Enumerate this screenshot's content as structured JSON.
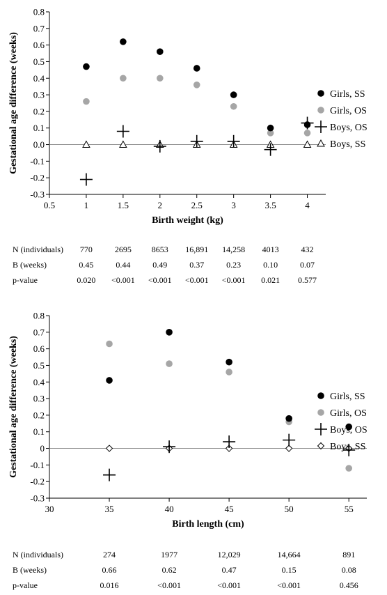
{
  "chart_data": [
    {
      "type": "scatter",
      "xlabel": "Birth weight (kg)",
      "ylabel": "Gestational age difference (weeks)",
      "xlim": [
        0.5,
        4.25
      ],
      "ylim": [
        -0.3,
        0.8
      ],
      "xticks": [
        "0.5",
        "1",
        "1.5",
        "2",
        "2.5",
        "3",
        "3.5",
        "4"
      ],
      "yticks": [
        "-0.3",
        "-0.2",
        "-0.1",
        "0.0",
        "0.1",
        "0.2",
        "0.3",
        "0.4",
        "0.5",
        "0.6",
        "0.7",
        "0.8"
      ],
      "legend_position": "right",
      "x": [
        1,
        1.5,
        2,
        2.5,
        3,
        3.5,
        4
      ],
      "series": [
        {
          "name": "Girls, SS",
          "marker": "filled-circle",
          "color": "#000000",
          "values": [
            0.47,
            0.62,
            0.56,
            0.46,
            0.3,
            0.1,
            0.12
          ]
        },
        {
          "name": "Girls, OS",
          "marker": "filled-circle",
          "color": "#a6a6a6",
          "values": [
            0.26,
            0.4,
            0.4,
            0.36,
            0.23,
            0.07,
            0.07
          ]
        },
        {
          "name": "Boys, OS",
          "marker": "plus",
          "color": "#000000",
          "values": [
            -0.21,
            0.08,
            -0.01,
            0.02,
            0.02,
            -0.03,
            0.13
          ]
        },
        {
          "name": "Boys, SS",
          "marker": "open-triangle",
          "color": "#000000",
          "values": [
            0.0,
            0.0,
            0.0,
            0.0,
            0.0,
            0.0,
            0.0
          ]
        }
      ],
      "table": {
        "rows": [
          {
            "label": "N (individuals)",
            "values": [
              "770",
              "2695",
              "8653",
              "16,891",
              "14,258",
              "4013",
              "432"
            ]
          },
          {
            "label": "B (weeks)",
            "values": [
              "0.45",
              "0.44",
              "0.49",
              "0.37",
              "0.23",
              "0.10",
              "0.07"
            ]
          },
          {
            "label": "p-value",
            "values": [
              "0.020",
              "<0.001",
              "<0.001",
              "<0.001",
              "<0.001",
              "0.021",
              "0.577"
            ]
          }
        ]
      }
    },
    {
      "type": "scatter",
      "xlabel": "Birth length (cm)",
      "ylabel": "Gestational age difference (weeks)",
      "xlim": [
        30,
        56.5
      ],
      "ylim": [
        -0.3,
        0.8
      ],
      "xticks": [
        "30",
        "35",
        "40",
        "45",
        "50",
        "55"
      ],
      "yticks": [
        "-0.3",
        "-0.2",
        "-0.1",
        "0",
        "0.1",
        "0.2",
        "0.3",
        "0.4",
        "0.5",
        "0.6",
        "0.7",
        "0.8"
      ],
      "legend_position": "right",
      "x": [
        35,
        40,
        45,
        50,
        55
      ],
      "series": [
        {
          "name": "Girls, SS",
          "marker": "filled-circle",
          "color": "#000000",
          "values": [
            0.41,
            0.7,
            0.52,
            0.18,
            0.13
          ]
        },
        {
          "name": "Girls, OS",
          "marker": "filled-circle",
          "color": "#a6a6a6",
          "values": [
            0.63,
            0.51,
            0.46,
            0.16,
            -0.12
          ]
        },
        {
          "name": "Boys, OS",
          "marker": "plus",
          "color": "#000000",
          "values": [
            -0.16,
            0.01,
            0.04,
            0.05,
            -0.01
          ]
        },
        {
          "name": "Boys, SS",
          "marker": "open-diamond",
          "color": "#000000",
          "values": [
            0.0,
            0.0,
            0.0,
            0.0,
            0.0
          ]
        }
      ],
      "table": {
        "rows": [
          {
            "label": "N (individuals)",
            "values": [
              "274",
              "1977",
              "12,029",
              "14,664",
              "891"
            ]
          },
          {
            "label": "B (weeks)",
            "values": [
              "0.66",
              "0.62",
              "0.47",
              "0.15",
              "0.08"
            ]
          },
          {
            "label": "p-value",
            "values": [
              "0.016",
              "<0.001",
              "<0.001",
              "<0.001",
              "0.456"
            ]
          }
        ]
      }
    }
  ]
}
